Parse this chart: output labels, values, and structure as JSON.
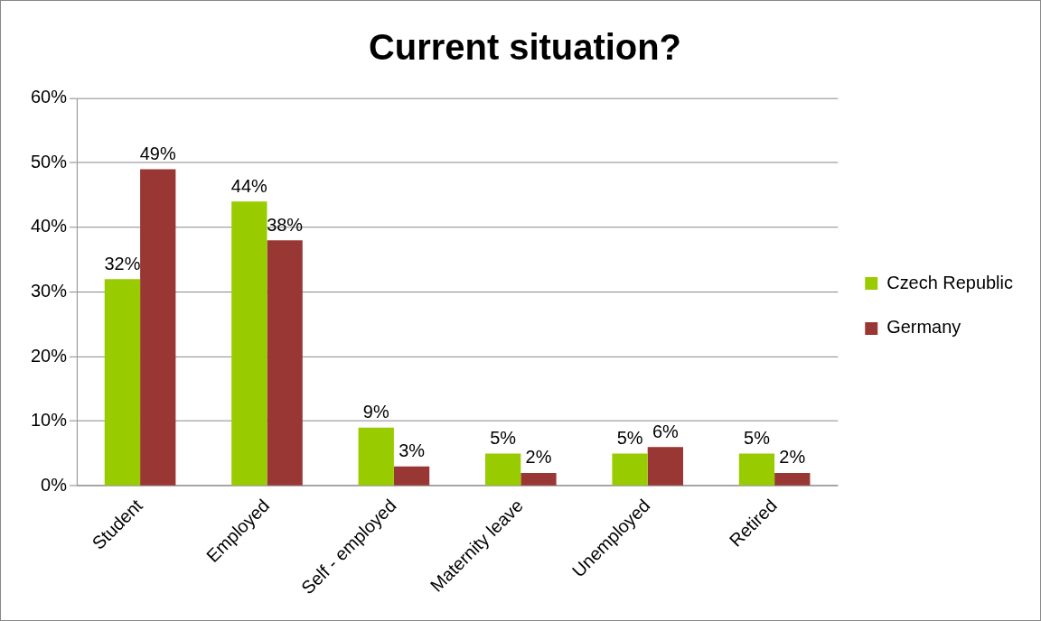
{
  "chart_data": {
    "type": "bar",
    "title": "Current situation?",
    "categories": [
      "Student",
      "Employed",
      "Self - employed",
      "Maternity leave",
      "Unemployed",
      "Retired"
    ],
    "series": [
      {
        "name": "Czech Republic",
        "color": "#99cc00",
        "values": [
          32,
          44,
          9,
          5,
          5,
          5
        ],
        "value_labels": [
          "32%",
          "44%",
          "9%",
          "5%",
          "5%",
          "5%"
        ]
      },
      {
        "name": "Germany",
        "color": "#993735",
        "values": [
          49,
          38,
          3,
          2,
          6,
          2
        ],
        "value_labels": [
          "49%",
          "38%",
          "3%",
          "2%",
          "6%",
          "2%"
        ]
      }
    ],
    "ylim": [
      0,
      60
    ],
    "yticks": [
      {
        "value": 0,
        "label": "0%"
      },
      {
        "value": 10,
        "label": "10%"
      },
      {
        "value": 20,
        "label": "20%"
      },
      {
        "value": 30,
        "label": "30%"
      },
      {
        "value": 40,
        "label": "40%"
      },
      {
        "value": 50,
        "label": "50%"
      },
      {
        "value": 60,
        "label": "60%"
      }
    ],
    "grid": "y",
    "legend": "right"
  }
}
